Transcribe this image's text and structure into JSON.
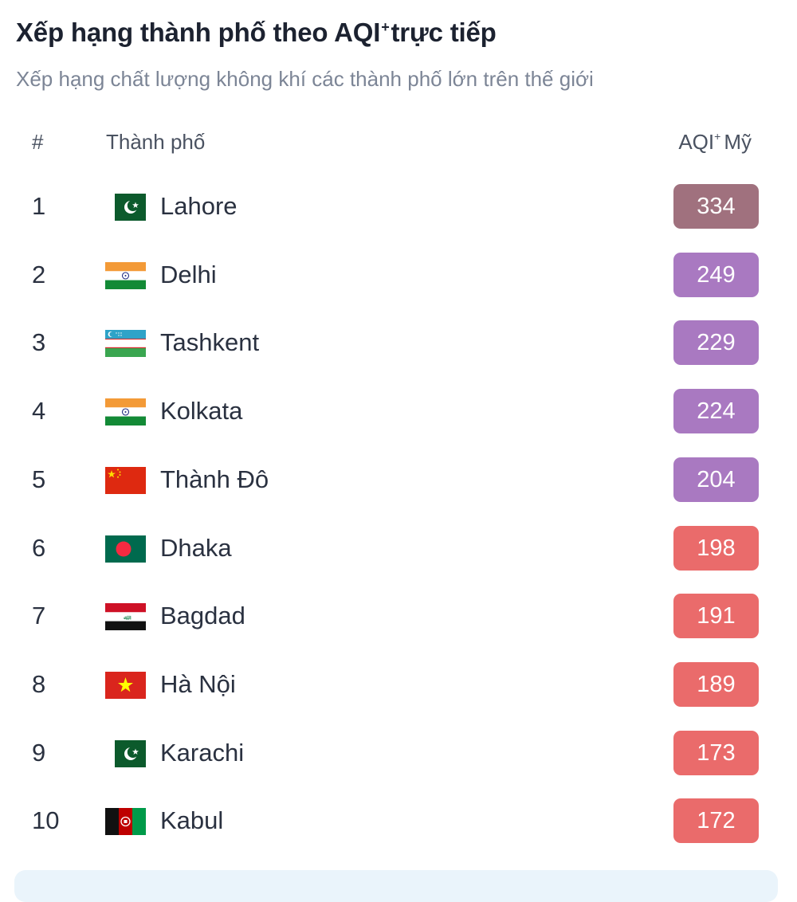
{
  "header": {
    "title_main": "Xếp hạng thành phố theo AQI",
    "title_sup": "+",
    "title_tail": "trực tiếp",
    "subtitle": "Xếp hạng chất lượng không khí các thành phố lớn trên thế giới"
  },
  "table": {
    "col_rank": "#",
    "col_city": "Thành phố",
    "col_aqi_main": "AQI",
    "col_aqi_sup": "+",
    "col_aqi_tail": "Mỹ",
    "rows": [
      {
        "rank": "1",
        "flag": "pakistan-flag",
        "city": "Lahore",
        "aqi": "334",
        "color": "#a0717e"
      },
      {
        "rank": "2",
        "flag": "india-flag",
        "city": "Delhi",
        "aqi": "249",
        "color": "#a979c1"
      },
      {
        "rank": "3",
        "flag": "uzbekistan-flag",
        "city": "Tashkent",
        "aqi": "229",
        "color": "#a979c1"
      },
      {
        "rank": "4",
        "flag": "india-flag",
        "city": "Kolkata",
        "aqi": "224",
        "color": "#a979c1"
      },
      {
        "rank": "5",
        "flag": "china-flag",
        "city": "Thành Đô",
        "aqi": "204",
        "color": "#a979c1"
      },
      {
        "rank": "6",
        "flag": "bangladesh-flag",
        "city": "Dhaka",
        "aqi": "198",
        "color": "#ea6b6b"
      },
      {
        "rank": "7",
        "flag": "iraq-flag",
        "city": "Bagdad",
        "aqi": "191",
        "color": "#ea6b6b"
      },
      {
        "rank": "8",
        "flag": "vietnam-flag",
        "city": "Hà Nội",
        "aqi": "189",
        "color": "#ea6b6b"
      },
      {
        "rank": "9",
        "flag": "pakistan-flag",
        "city": "Karachi",
        "aqi": "173",
        "color": "#ea6b6b"
      },
      {
        "rank": "10",
        "flag": "afghanistan-flag",
        "city": "Kabul",
        "aqi": "172",
        "color": "#ea6b6b"
      }
    ]
  }
}
